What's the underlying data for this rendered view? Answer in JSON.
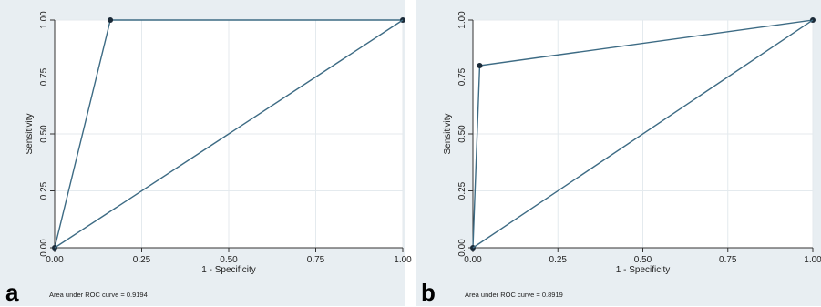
{
  "chart_data": [
    {
      "type": "line",
      "panel_label": "a",
      "xlabel": "1 - Specificity",
      "ylabel": "Sensitivity",
      "xlim": [
        0,
        1
      ],
      "ylim": [
        0,
        1
      ],
      "x_ticks": [
        "0.00",
        "0.25",
        "0.50",
        "0.75",
        "1.00"
      ],
      "y_ticks": [
        "0.00",
        "0.25",
        "0.50",
        "0.75",
        "1.00"
      ],
      "grid": true,
      "series": [
        {
          "x": [
            0.0,
            0.16,
            1.0
          ],
          "y": [
            0.0,
            1.0,
            1.0
          ],
          "markers": true
        },
        {
          "x": [
            0.0,
            1.0
          ],
          "y": [
            0.0,
            1.0
          ],
          "markers": false
        }
      ],
      "annotation": "Area under ROC curve = 0.9194"
    },
    {
      "type": "line",
      "panel_label": "b",
      "xlabel": "1 - Specificity",
      "ylabel": "Sensitivity",
      "xlim": [
        0,
        1
      ],
      "ylim": [
        0,
        1
      ],
      "x_ticks": [
        "0.00",
        "0.25",
        "0.50",
        "0.75",
        "1.00"
      ],
      "y_ticks": [
        "0.00",
        "0.25",
        "0.50",
        "0.75",
        "1.00"
      ],
      "grid": true,
      "series": [
        {
          "x": [
            0.0,
            0.02,
            1.0
          ],
          "y": [
            0.0,
            0.8,
            1.0
          ],
          "markers": true
        },
        {
          "x": [
            0.0,
            1.0
          ],
          "y": [
            0.0,
            1.0
          ],
          "markers": false
        }
      ],
      "annotation": "Area under ROC curve = 0.8919"
    }
  ],
  "colors": {
    "curve": "#3d6b84",
    "marker": "#1b2a38",
    "plot_bg": "#ffffff",
    "panel_bg": "#e8eef2",
    "grid": "#e4eaee"
  }
}
